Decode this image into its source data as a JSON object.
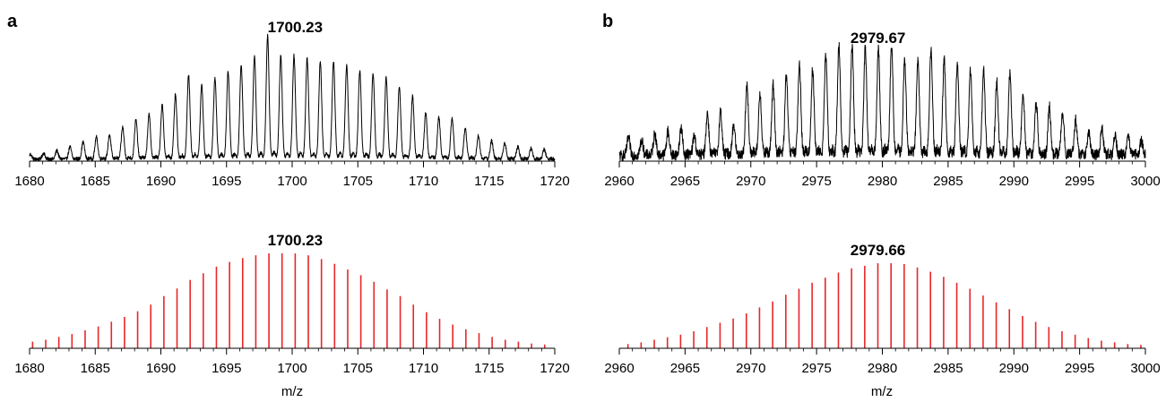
{
  "panels": [
    {
      "letter": "a",
      "xlabel": "m/z"
    },
    {
      "letter": "b",
      "xlabel": "m/z"
    }
  ],
  "colors": {
    "experimental": "#000000",
    "theoretical": "#e8262a",
    "axis": "#000000"
  },
  "chart_data": [
    {
      "type": "line",
      "panel": "a",
      "name": "experimental-a",
      "peak_label": "1700.23",
      "xlim": [
        1680,
        1720
      ],
      "ylim": [
        0,
        100
      ],
      "xticks": [
        1680,
        1685,
        1690,
        1695,
        1700,
        1705,
        1710,
        1715,
        1720
      ],
      "xlabel": "",
      "noise_level": 3,
      "peaks": {
        "x": [
          1680.07,
          1681.07,
          1682.08,
          1683.08,
          1684.08,
          1685.09,
          1686.09,
          1687.09,
          1688.1,
          1689.1,
          1690.1,
          1691.11,
          1692.11,
          1693.11,
          1694.12,
          1695.12,
          1696.12,
          1697.13,
          1698.13,
          1699.13,
          1700.14,
          1701.14,
          1702.14,
          1703.15,
          1704.15,
          1705.15,
          1706.16,
          1707.16,
          1708.16,
          1709.17,
          1710.17,
          1711.17,
          1712.18,
          1713.18,
          1714.18,
          1715.19,
          1716.19,
          1717.19,
          1718.2,
          1719.2
        ],
        "y": [
          4,
          5,
          7,
          10,
          14,
          18,
          20,
          26,
          32,
          36,
          44,
          52,
          68,
          60,
          66,
          71,
          76,
          84,
          100,
          84,
          84,
          82,
          79,
          79,
          76,
          72,
          70,
          66,
          59,
          51,
          37,
          34,
          33,
          25,
          19,
          15,
          13,
          10,
          9,
          8
        ]
      }
    },
    {
      "type": "bar",
      "panel": "a",
      "name": "theoretical-a",
      "peak_label": "1700.23",
      "xlim": [
        1680,
        1720
      ],
      "ylim": [
        0,
        100
      ],
      "xticks": [
        1680,
        1685,
        1690,
        1695,
        1700,
        1705,
        1710,
        1715,
        1720
      ],
      "xlabel": "m/z",
      "x": [
        1680.23,
        1681.23,
        1682.23,
        1683.23,
        1684.23,
        1685.23,
        1686.23,
        1687.23,
        1688.23,
        1689.23,
        1690.23,
        1691.23,
        1692.23,
        1693.23,
        1694.23,
        1695.23,
        1696.23,
        1697.23,
        1698.23,
        1699.23,
        1700.23,
        1701.23,
        1702.23,
        1703.23,
        1704.23,
        1705.23,
        1706.23,
        1707.23,
        1708.23,
        1709.23,
        1710.23,
        1711.23,
        1712.23,
        1713.23,
        1714.23,
        1715.23,
        1716.23,
        1717.23,
        1718.23,
        1719.23
      ],
      "values": [
        7,
        9,
        12,
        15,
        19,
        23,
        28,
        33,
        39,
        46,
        55,
        63,
        72,
        79,
        86,
        91,
        95,
        98,
        100,
        100,
        100,
        98,
        94,
        89,
        83,
        77,
        70,
        62,
        55,
        46,
        38,
        31,
        25,
        20,
        16,
        12,
        9,
        7,
        5,
        4
      ]
    },
    {
      "type": "line",
      "panel": "b",
      "name": "experimental-b",
      "peak_label": "2979.67",
      "xlim": [
        2960,
        3000
      ],
      "ylim": [
        0,
        100
      ],
      "xticks": [
        2960,
        2965,
        2970,
        2975,
        2980,
        2985,
        2990,
        2995,
        3000
      ],
      "xlabel": "",
      "noise_level": 10,
      "peaks": {
        "x": [
          2960.7,
          2961.7,
          2962.7,
          2963.7,
          2964.7,
          2965.7,
          2966.7,
          2967.7,
          2968.7,
          2969.7,
          2970.7,
          2971.7,
          2972.7,
          2973.7,
          2974.7,
          2975.7,
          2976.7,
          2977.7,
          2978.7,
          2979.7,
          2980.7,
          2981.7,
          2982.7,
          2983.7,
          2984.7,
          2985.7,
          2986.7,
          2987.7,
          2988.7,
          2989.7,
          2990.7,
          2991.7,
          2992.7,
          2993.7,
          2994.7,
          2995.7,
          2996.7,
          2997.7,
          2998.7,
          2999.7
        ],
        "y": [
          16,
          14,
          20,
          22,
          25,
          18,
          38,
          40,
          28,
          64,
          56,
          64,
          72,
          82,
          78,
          90,
          99,
          99,
          96,
          96,
          100,
          86,
          87,
          97,
          86,
          82,
          76,
          77,
          66,
          73,
          54,
          48,
          44,
          40,
          32,
          22,
          24,
          18,
          16,
          14
        ]
      }
    },
    {
      "type": "bar",
      "panel": "b",
      "name": "theoretical-b",
      "peak_label": "2979.66",
      "xlim": [
        2960,
        3000
      ],
      "ylim": [
        0,
        100
      ],
      "xticks": [
        2960,
        2965,
        2970,
        2975,
        2980,
        2985,
        2990,
        2995,
        3000
      ],
      "xlabel": "m/z",
      "x": [
        2960.66,
        2961.66,
        2962.66,
        2963.66,
        2964.66,
        2965.66,
        2966.66,
        2967.66,
        2968.66,
        2969.66,
        2970.66,
        2971.66,
        2972.66,
        2973.66,
        2974.66,
        2975.66,
        2976.66,
        2977.66,
        2978.66,
        2979.66,
        2980.66,
        2981.66,
        2982.66,
        2983.66,
        2984.66,
        2985.66,
        2986.66,
        2987.66,
        2988.66,
        2989.66,
        2990.66,
        2991.66,
        2992.66,
        2993.66,
        2994.66,
        2995.66,
        2996.66,
        2997.66,
        2998.66,
        2999.66
      ],
      "values": [
        5,
        7,
        10,
        13,
        16,
        20,
        25,
        30,
        35,
        41,
        48,
        55,
        63,
        70,
        77,
        83,
        89,
        94,
        97,
        100,
        100,
        99,
        95,
        90,
        84,
        77,
        70,
        62,
        54,
        46,
        38,
        31,
        25,
        20,
        16,
        12,
        9,
        7,
        5,
        4
      ]
    }
  ]
}
